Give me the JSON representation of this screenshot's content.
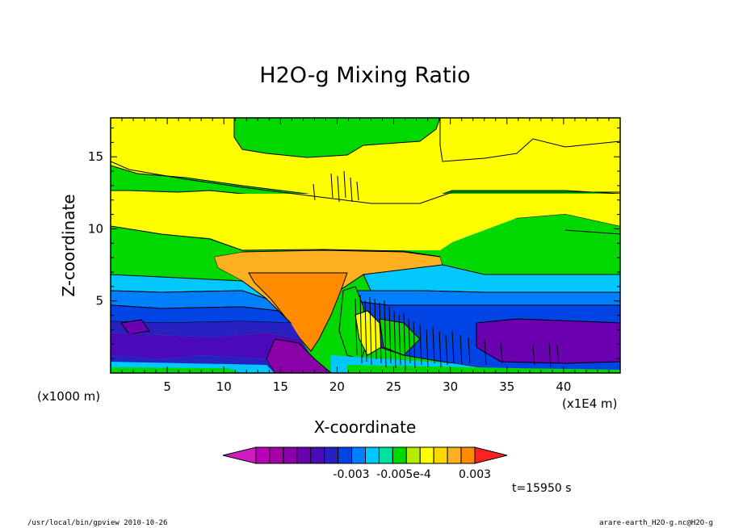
{
  "chart_data": {
    "type": "heatmap",
    "title": "H2O-g Mixing Ratio",
    "xlabel": "X-coordinate",
    "ylabel": "Z-coordinate",
    "x_unit_left": "(x1000 m)",
    "x_unit_right": "(x1E4 m)",
    "x_ticks": [
      "5",
      "10",
      "15",
      "20",
      "25",
      "30",
      "35",
      "40"
    ],
    "y_ticks": [
      "5",
      "10",
      "15"
    ],
    "xlim": [
      0,
      45
    ],
    "ylim": [
      0,
      17.7
    ],
    "colorbar_labels": [
      "-0.003",
      "-0.005e-4",
      "0.003"
    ],
    "colorbar_colors": [
      "#d21bbf",
      "#b700b7",
      "#a400a4",
      "#8a00a8",
      "#6a00b0",
      "#4b0ab9",
      "#2820c0",
      "#0044e6",
      "#0080ff",
      "#00c8ff",
      "#00e0a0",
      "#00d800",
      "#b7ec00",
      "#ffff00",
      "#ffd700",
      "#ffb020",
      "#ff8c00",
      "#ff2020"
    ],
    "time_label": "t=15950 s",
    "footer_left": "/usr/local/bin/gpview  2010-10-26",
    "footer_right": "arare-earth_H2O-g.nc@H2O-g"
  }
}
